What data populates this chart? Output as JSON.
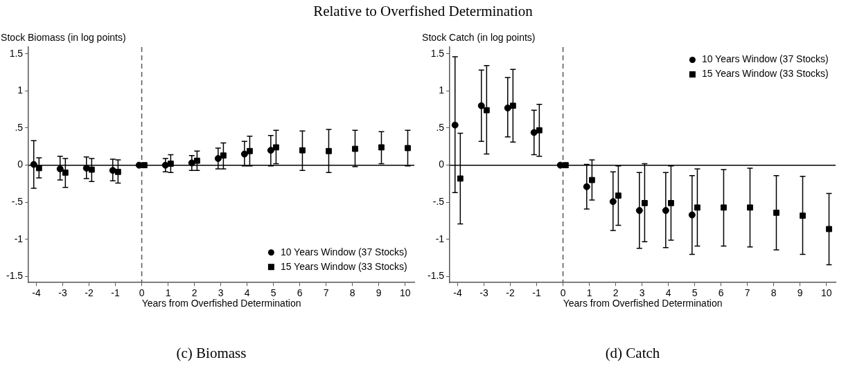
{
  "chart_data": [
    {
      "type": "scatter",
      "title": "Relative to Overfished Determination",
      "ylabel": "Stock Biomass (in log points)",
      "xlabel": "Years from Overfished Determination",
      "annotations": [
        "(c) Biomass"
      ],
      "xlim": [
        -4.3,
        10.35
      ],
      "xticks": [
        -4,
        -3,
        -2,
        -1,
        0,
        1,
        2,
        3,
        4,
        5,
        6,
        7,
        8,
        9,
        10
      ],
      "ylim": [
        -1.58,
        1.59
      ],
      "yticks": [
        {
          "value": -1.5,
          "label": "-1.5"
        },
        {
          "value": -1,
          "label": "-1"
        },
        {
          "value": -0.5,
          "label": "-.5"
        },
        {
          "value": 0,
          "label": "0"
        },
        {
          "value": 0.5,
          "label": ".5"
        },
        {
          "value": 1,
          "label": "1"
        },
        {
          "value": 1.5,
          "label": "1.5"
        }
      ],
      "grid": false,
      "legend": "bottom right",
      "ref_lines": [
        {
          "axis": "y",
          "value": 0,
          "color": "#000000",
          "line_style": "solid"
        },
        {
          "axis": "x",
          "value": 0,
          "color": "#555555",
          "line_style": "dashed"
        }
      ],
      "series": [
        {
          "name": "10 Years Window (37 Stocks)",
          "color": "#000000",
          "marker": "circle",
          "x": [
            -4.1,
            -3.1,
            -2.1,
            -1.1,
            -0.1,
            0.9,
            1.9,
            2.9,
            3.9,
            4.9
          ],
          "values": [
            0.01,
            -0.05,
            -0.04,
            -0.07,
            0,
            0,
            0.03,
            0.09,
            0.15,
            0.2
          ],
          "errors": [
            [
              -0.31,
              0.33
            ],
            [
              -0.2,
              0.12
            ],
            [
              -0.18,
              0.11
            ],
            [
              -0.21,
              0.08
            ],
            null,
            [
              -0.09,
              0.09
            ],
            [
              -0.07,
              0.13
            ],
            [
              -0.05,
              0.23
            ],
            [
              -0.01,
              0.32
            ],
            [
              -0.01,
              0.4
            ]
          ]
        },
        {
          "name": "15 Years Window (33 Stocks)",
          "color": "#000000",
          "marker": "square",
          "x": [
            -3.9,
            -2.9,
            -1.9,
            -0.9,
            0.1,
            1.1,
            2.1,
            3.1,
            4.1,
            5.1,
            6.1,
            7.1,
            8.1,
            9.1,
            10.1
          ],
          "values": [
            -0.04,
            -0.1,
            -0.06,
            -0.09,
            0,
            0.02,
            0.06,
            0.13,
            0.19,
            0.24,
            0.2,
            0.19,
            0.22,
            0.24,
            0.23
          ],
          "errors": [
            [
              -0.17,
              0.1
            ],
            [
              -0.3,
              0.09
            ],
            [
              -0.22,
              0.09
            ],
            [
              -0.24,
              0.07
            ],
            null,
            [
              -0.1,
              0.14
            ],
            [
              -0.07,
              0.19
            ],
            [
              -0.05,
              0.3
            ],
            [
              -0.01,
              0.39
            ],
            [
              0.02,
              0.47
            ],
            [
              -0.07,
              0.46
            ],
            [
              -0.1,
              0.48
            ],
            [
              -0.02,
              0.47
            ],
            [
              0.02,
              0.45
            ],
            [
              -0.01,
              0.47
            ]
          ]
        }
      ]
    },
    {
      "type": "scatter",
      "ylabel": "Stock Catch (in log points)",
      "xlabel": "Years from Overfished Determination",
      "annotations": [
        "(d) Catch"
      ],
      "xlim": [
        -4.3,
        10.35
      ],
      "xticks": [
        -4,
        -3,
        -2,
        -1,
        0,
        1,
        2,
        3,
        4,
        5,
        6,
        7,
        8,
        9,
        10
      ],
      "ylim": [
        -1.58,
        1.59
      ],
      "yticks": [
        {
          "value": -1.5,
          "label": "-1.5"
        },
        {
          "value": -1,
          "label": "-1"
        },
        {
          "value": -0.5,
          "label": "-.5"
        },
        {
          "value": 0,
          "label": "0"
        },
        {
          "value": 0.5,
          "label": ".5"
        },
        {
          "value": 1,
          "label": "1"
        },
        {
          "value": 1.5,
          "label": "1.5"
        }
      ],
      "grid": false,
      "legend": "top right",
      "ref_lines": [
        {
          "axis": "y",
          "value": 0,
          "color": "#000000",
          "line_style": "solid"
        },
        {
          "axis": "x",
          "value": 0,
          "color": "#555555",
          "line_style": "dashed"
        }
      ],
      "series": [
        {
          "name": "10 Years Window (37 Stocks)",
          "color": "#000000",
          "marker": "circle",
          "x": [
            -4.1,
            -3.1,
            -2.1,
            -1.1,
            -0.1,
            0.9,
            1.9,
            2.9,
            3.9,
            4.9
          ],
          "values": [
            0.54,
            0.8,
            0.77,
            0.44,
            0,
            -0.29,
            -0.49,
            -0.61,
            -0.61,
            -0.67
          ],
          "errors": [
            [
              -0.37,
              1.46
            ],
            [
              0.32,
              1.28
            ],
            [
              0.38,
              1.18
            ],
            [
              0.14,
              0.74
            ],
            null,
            [
              -0.59,
              0.01
            ],
            [
              -0.88,
              -0.09
            ],
            [
              -1.12,
              -0.1
            ],
            [
              -1.11,
              -0.1
            ],
            [
              -1.2,
              -0.14
            ]
          ]
        },
        {
          "name": "15 Years Window (33 Stocks)",
          "color": "#000000",
          "marker": "square",
          "x": [
            -3.9,
            -2.9,
            -1.9,
            -0.9,
            0.1,
            1.1,
            2.1,
            3.1,
            4.1,
            5.1,
            6.1,
            7.1,
            8.1,
            9.1,
            10.1
          ],
          "values": [
            -0.18,
            0.74,
            0.8,
            0.47,
            0,
            -0.2,
            -0.41,
            -0.51,
            -0.51,
            -0.57,
            -0.57,
            -0.57,
            -0.64,
            -0.68,
            -0.86
          ],
          "errors": [
            [
              -0.79,
              0.43
            ],
            [
              0.15,
              1.34
            ],
            [
              0.31,
              1.29
            ],
            [
              0.12,
              0.82
            ],
            null,
            [
              -0.47,
              0.07
            ],
            [
              -0.81,
              -0.01
            ],
            [
              -1.03,
              0.02
            ],
            [
              -1.01,
              -0.01
            ],
            [
              -1.09,
              -0.05
            ],
            [
              -1.09,
              -0.06
            ],
            [
              -1.1,
              -0.04
            ],
            [
              -1.14,
              -0.14
            ],
            [
              -1.2,
              -0.15
            ],
            [
              -1.34,
              -0.38
            ]
          ]
        }
      ]
    }
  ]
}
